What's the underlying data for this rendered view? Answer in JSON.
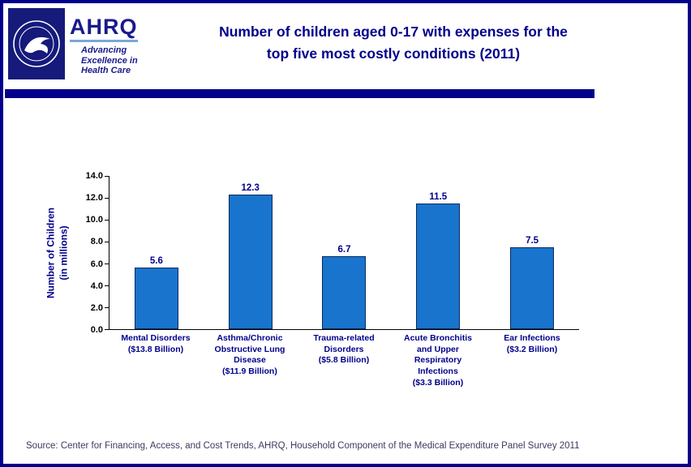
{
  "header": {
    "title_line1": "Number of children aged 0-17 with expenses for the",
    "title_line2": "top five most costly conditions (2011)",
    "logo": {
      "hhs_icon": "hhs-seal-icon",
      "ahrq_text": "AHRQ",
      "tagline_line1": "Advancing",
      "tagline_line2": "Excellence in",
      "tagline_line3": "Health Care"
    }
  },
  "chart_data": {
    "type": "bar",
    "title": "Number of children aged 0-17 with expenses for the top five most costly conditions (2011)",
    "categories": [
      {
        "lines": [
          "Mental Disorders",
          "($13.8 Billion)"
        ]
      },
      {
        "lines": [
          "Asthma/Chronic",
          "Obstructive Lung",
          "Disease",
          "($11.9 Billion)"
        ]
      },
      {
        "lines": [
          "Trauma-related",
          "Disorders",
          "($5.8 Billion)"
        ]
      },
      {
        "lines": [
          "Acute Bronchitis",
          "and Upper",
          "Respiratory",
          "Infections",
          "($3.3 Billion)"
        ]
      },
      {
        "lines": [
          "Ear Infections",
          "($3.2 Billion)"
        ]
      }
    ],
    "values": [
      5.6,
      12.3,
      6.7,
      11.5,
      7.5
    ],
    "value_labels": [
      "5.6",
      "12.3",
      "6.7",
      "11.5",
      "7.5"
    ],
    "ylabel_line1": "Number of Children",
    "ylabel_line2": "(in millions)",
    "xlabel": "",
    "ylim": [
      0,
      14
    ],
    "yticks": [
      "0.0",
      "2.0",
      "4.0",
      "6.0",
      "8.0",
      "10.0",
      "12.0",
      "14.0"
    ],
    "grid": false,
    "legend": false,
    "bar_color": "#1874CD",
    "bar_border_color": "#0a2a5e"
  },
  "source": {
    "text": "Source: Center for Financing, Access, and Cost Trends, AHRQ, Household Component of the Medical Expenditure Panel Survey 2011"
  },
  "colors": {
    "navy": "#00008B",
    "bar_blue": "#1874CD",
    "divider": "#00008B"
  }
}
